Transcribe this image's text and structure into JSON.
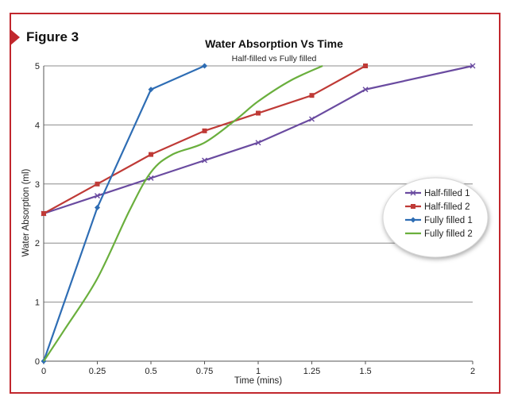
{
  "figure_label": "Figure 3",
  "colors": {
    "frame": "#c1272d",
    "grid": "#8c8c8c",
    "axis": "#555555"
  },
  "chart_data": {
    "type": "line",
    "title": "Water Absorption Vs Time",
    "subtitle": "Half-filled vs Fully filled",
    "xlabel": "Time (mins)",
    "ylabel": "Water Absorption (ml)",
    "xlim": [
      0,
      2
    ],
    "ylim": [
      0,
      5
    ],
    "x_ticks": [
      0,
      0.25,
      0.5,
      0.75,
      1,
      1.25,
      1.5,
      2
    ],
    "x_tick_labels": [
      "0",
      "0.25",
      "0.5",
      "0.75",
      "1",
      "1.25",
      "1.5",
      "2"
    ],
    "y_ticks": [
      0,
      1,
      2,
      3,
      4,
      5
    ],
    "y_tick_labels": [
      "0",
      "1",
      "2",
      "3",
      "4",
      "5"
    ],
    "grid": "horizontal",
    "legend_position": "right",
    "series": [
      {
        "name": "Half-filled 1",
        "color": "#6a4ba0",
        "marker": "x",
        "smooth": false,
        "x": [
          0,
          0.25,
          0.5,
          0.75,
          1,
          1.25,
          1.5,
          2
        ],
        "y": [
          2.5,
          2.8,
          3.1,
          3.4,
          3.7,
          4.1,
          4.6,
          5.0
        ]
      },
      {
        "name": "Half-filled 2",
        "color": "#bf3a36",
        "marker": "square",
        "smooth": false,
        "x": [
          0,
          0.25,
          0.5,
          0.75,
          1,
          1.25,
          1.5
        ],
        "y": [
          2.5,
          3.0,
          3.5,
          3.9,
          4.2,
          4.5,
          5.0
        ]
      },
      {
        "name": "Fully filled 1",
        "color": "#2e6db4",
        "marker": "diamond",
        "smooth": false,
        "x": [
          0,
          0.25,
          0.5,
          0.75
        ],
        "y": [
          0,
          2.6,
          4.6,
          5.0
        ]
      },
      {
        "name": "Fully filled 2",
        "color": "#6aaf3d",
        "marker": "none",
        "smooth": true,
        "x": [
          0,
          0.1,
          0.25,
          0.4,
          0.5,
          0.6,
          0.75,
          0.9,
          1,
          1.15,
          1.3
        ],
        "y": [
          0,
          0.55,
          1.4,
          2.55,
          3.2,
          3.5,
          3.7,
          4.1,
          4.4,
          4.75,
          5.0
        ]
      }
    ]
  }
}
